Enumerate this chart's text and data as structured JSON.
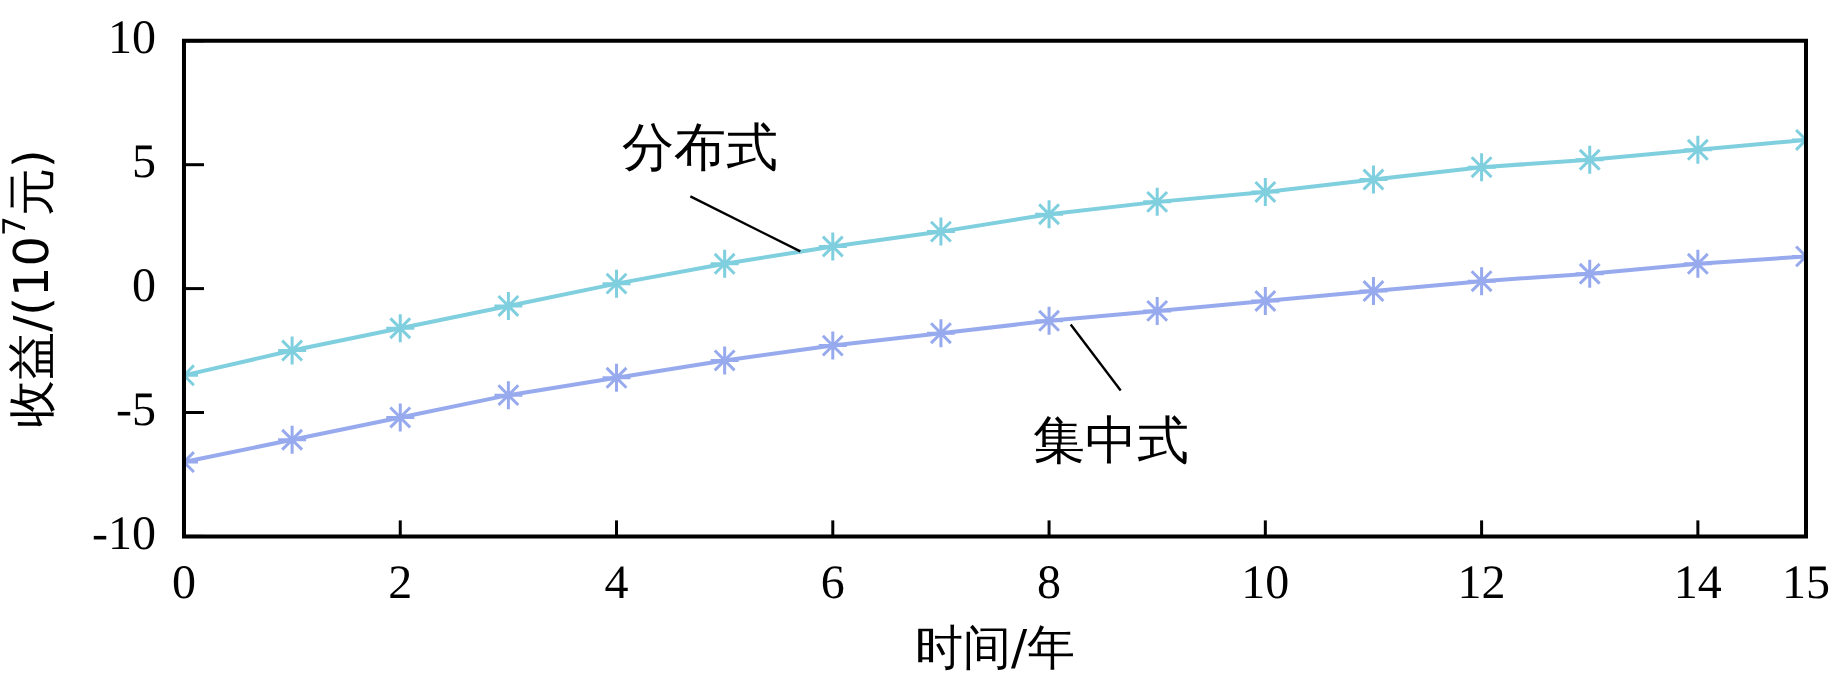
{
  "chart_data": {
    "type": "line",
    "xlabel": "时间/年",
    "ylabel": "收益/(10$^{7}$元)",
    "x": [
      0,
      1,
      2,
      3,
      4,
      5,
      6,
      7,
      8,
      9,
      10,
      11,
      12,
      13,
      14,
      15
    ],
    "series": [
      {
        "name": "分布式",
        "color": "#7fcfdf",
        "values": [
          -3.5,
          -2.5,
          -1.6,
          -0.7,
          0.2,
          1.0,
          1.7,
          2.3,
          3.0,
          3.5,
          3.9,
          4.4,
          4.9,
          5.2,
          5.6,
          6.0
        ]
      },
      {
        "name": "集中式",
        "color": "#98aaee",
        "values": [
          -7.0,
          -6.1,
          -5.2,
          -4.3,
          -3.6,
          -2.9,
          -2.3,
          -1.8,
          -1.3,
          -0.9,
          -0.5,
          -0.1,
          0.3,
          0.6,
          1.0,
          1.3
        ]
      }
    ],
    "xlim": [
      0,
      15
    ],
    "xticks": [
      0,
      2,
      4,
      6,
      8,
      10,
      12,
      14,
      15
    ],
    "ylim": [
      -10,
      10
    ],
    "yticks": [
      -10,
      -5,
      0,
      5,
      10
    ],
    "marker": "cross",
    "line_style": "solid",
    "grid": false,
    "legend": false
  }
}
